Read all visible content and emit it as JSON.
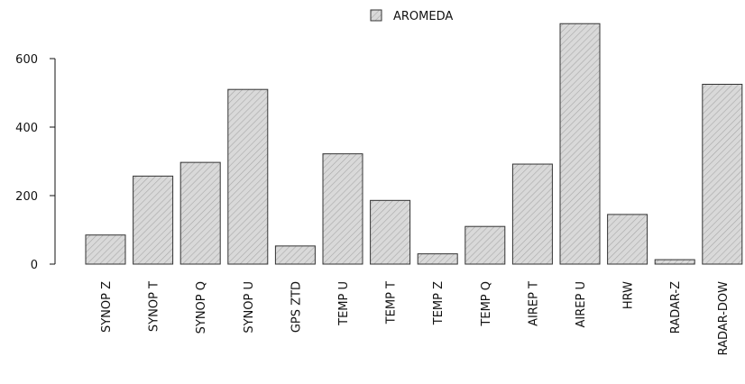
{
  "chart_data": {
    "type": "bar",
    "legend": {
      "label": "AROMEDA",
      "position": "top"
    },
    "categories": [
      "SYNOP Z",
      "SYNOP T",
      "SYNOP Q",
      "SYNOP U",
      "GPS ZTD",
      "TEMP U",
      "TEMP T",
      "TEMP Z",
      "TEMP Q",
      "AIREP T",
      "AIREP U",
      "HRW",
      "RADAR-Z",
      "RADAR-DOW"
    ],
    "series": [
      {
        "name": "AROMEDA",
        "values": [
          85,
          257,
          297,
          510,
          53,
          322,
          186,
          30,
          110,
          292,
          702,
          145,
          13,
          525
        ]
      }
    ],
    "y_ticks": [
      0,
      200,
      400,
      600
    ],
    "ylim": [
      0,
      702
    ],
    "grid": false,
    "fill_color": "#d9d9d9",
    "hatch_color": "#a8a8a8",
    "border_color": "#333333"
  }
}
